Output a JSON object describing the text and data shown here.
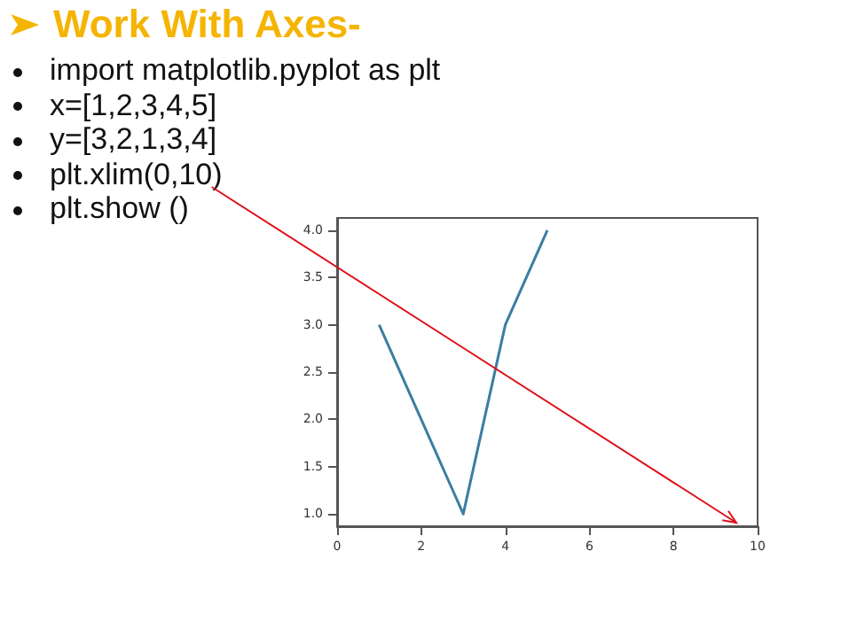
{
  "chart_data": {
    "type": "line",
    "title": "Work With Axes-",
    "annotations": [
      "import matplotlib.pyplot as plt",
      "x=[1,2,3,4,5]",
      "y=[3,2,1,3,4]",
      "plt.xlim(0,10)",
      "plt.show ()"
    ],
    "x": [
      1,
      2,
      3,
      4,
      5
    ],
    "series": [
      {
        "color": "#3b7ea1",
        "values": [
          3,
          2,
          1,
          3,
          4
        ]
      }
    ],
    "xlim": [
      0,
      10
    ],
    "ylim": [
      0.87,
      4.13
    ],
    "xticks": [
      0,
      2,
      4,
      6,
      8,
      10
    ],
    "yticks": [
      {
        "value": 1,
        "label": "1.0"
      },
      {
        "value": 1.5,
        "label": "1.5"
      },
      {
        "value": 2,
        "label": "2.0"
      },
      {
        "value": 2.5,
        "label": "2.5"
      },
      {
        "value": 3,
        "label": "3.0"
      },
      {
        "value": 3.5,
        "label": "3.5"
      },
      {
        "value": 4,
        "label": "4.0"
      }
    ],
    "grid": false,
    "marker": "none",
    "line_style": "solid"
  }
}
